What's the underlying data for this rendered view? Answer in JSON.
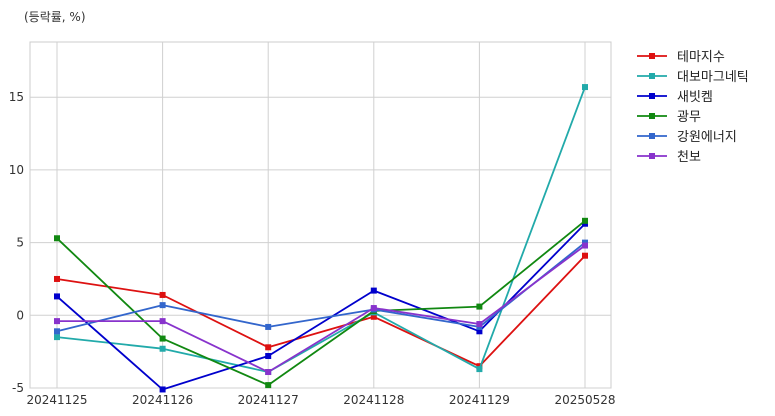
{
  "unit_label": "(등락률, %)",
  "chart_data": {
    "type": "line",
    "categories": [
      "20241125",
      "20241126",
      "20241127",
      "20241128",
      "20241129",
      "20250528"
    ],
    "y_ticks": [
      -5,
      0,
      5,
      10,
      15
    ],
    "ylim": [
      -5.0,
      18.8
    ],
    "grid": true,
    "legend_position": "right",
    "series": [
      {
        "name": "테마지수",
        "color": "#dd1111",
        "values": [
          2.5,
          1.4,
          -2.2,
          -0.1,
          -3.5,
          4.1
        ]
      },
      {
        "name": "대보마그네틱",
        "color": "#22aaaa",
        "values": [
          -1.5,
          -2.3,
          -3.9,
          0.2,
          -3.7,
          15.7
        ]
      },
      {
        "name": "새빗켐",
        "color": "#0000cc",
        "values": [
          1.3,
          -5.1,
          -2.8,
          1.7,
          -1.1,
          6.3
        ]
      },
      {
        "name": "광무",
        "color": "#118811",
        "values": [
          5.3,
          -1.6,
          -4.8,
          0.3,
          0.6,
          6.5
        ]
      },
      {
        "name": "강원에너지",
        "color": "#3366cc",
        "values": [
          -1.1,
          0.7,
          -0.8,
          0.4,
          -0.8,
          5.0
        ]
      },
      {
        "name": "천보",
        "color": "#8833cc",
        "values": [
          -0.4,
          -0.4,
          -3.9,
          0.5,
          -0.6,
          4.8
        ]
      }
    ]
  }
}
